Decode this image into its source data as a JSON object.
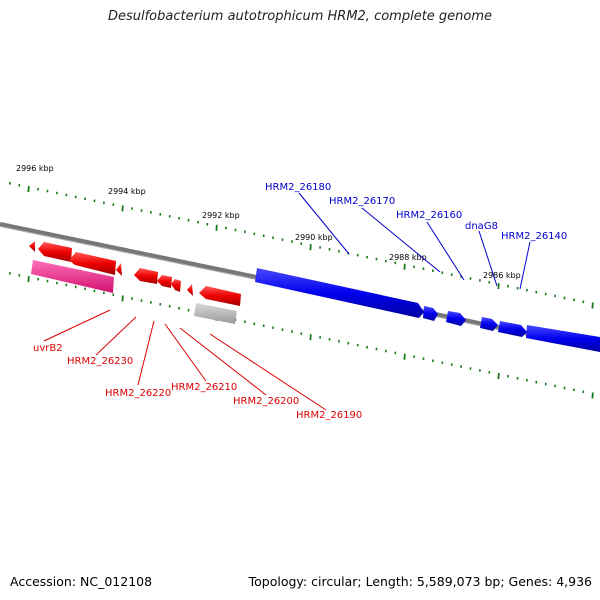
{
  "title": "Desulfobacterium autotrophicum HRM2, complete genome",
  "accession": "Accession: NC_012108",
  "topology": "Topology: circular; Length: 5,589,073 bp; Genes: 4,936",
  "colors": {
    "forward_gene": "#0000ee",
    "reverse_gene": "#ee0000",
    "highlight_gene": "#ee2288",
    "pseudo_gene": "#b8b8b8",
    "backbone": "#777777",
    "tick": "#1a7a1a"
  },
  "scale_labels": [
    "2996 kbp",
    "2994 kbp",
    "2992 kbp",
    "2990 kbp",
    "2988 kbp",
    "2986 kbp"
  ],
  "forward_labels": [
    "HRM2_26180",
    "HRM2_26170",
    "HRM2_26160",
    "dnaG8",
    "HRM2_26140"
  ],
  "reverse_labels": [
    "uvrB2",
    "HRM2_26230",
    "HRM2_26220",
    "HRM2_26210",
    "HRM2_26200",
    "HRM2_26190"
  ]
}
